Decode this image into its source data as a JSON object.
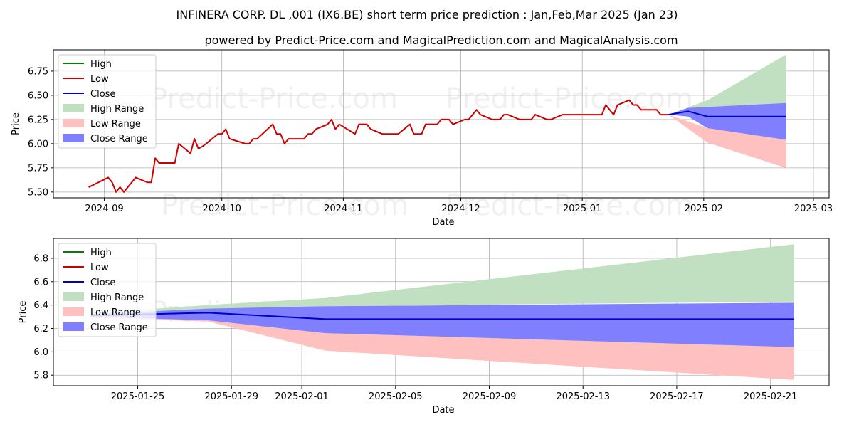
{
  "title": "INFINERA CORP. DL ,001 (IX6.BE) short term price prediction : Jan,Feb,Mar 2025 (Jan 23)",
  "subtitle": "powered by Predict-Price.com and MagicalPrediction.com and MagicalAnalysis.com",
  "watermark": "Predict-Price.com",
  "colors": {
    "high": "#008000",
    "low": "#cc0000",
    "close": "#0000cc",
    "high_range": "#c1e0c1",
    "low_range": "#ffc0c0",
    "close_range": "#8080ff"
  },
  "chart_data": [
    {
      "type": "line",
      "xlabel": "Date",
      "ylabel": "Price",
      "xlim": [
        "2024-08-19",
        "2025-03-05"
      ],
      "ylim": [
        5.44,
        6.97
      ],
      "x_ticks": [
        {
          "date": "2024-09-01",
          "label": "2024-09"
        },
        {
          "date": "2024-10-01",
          "label": "2024-10"
        },
        {
          "date": "2024-11-01",
          "label": "2024-11"
        },
        {
          "date": "2024-12-01",
          "label": "2024-12"
        },
        {
          "date": "2025-01-01",
          "label": "2025-01"
        },
        {
          "date": "2025-02-01",
          "label": "2025-02"
        },
        {
          "date": "2025-03-01",
          "label": "2025-03"
        }
      ],
      "y_ticks": [
        {
          "value": 5.5,
          "label": "5.50"
        },
        {
          "value": 5.75,
          "label": "5.75"
        },
        {
          "value": 6.0,
          "label": "6.00"
        },
        {
          "value": 6.25,
          "label": "6.25"
        },
        {
          "value": 6.5,
          "label": "6.50"
        },
        {
          "value": 6.75,
          "label": "6.75"
        }
      ],
      "legend_position": "upper-left",
      "legend": [
        "High",
        "Low",
        "Close",
        "High Range",
        "Low Range",
        "Close Range"
      ],
      "grid": true,
      "series": [
        {
          "name": "Low",
          "x": [
            "2024-08-28",
            "2024-09-02",
            "2024-09-03",
            "2024-09-04",
            "2024-09-05",
            "2024-09-06",
            "2024-09-07",
            "2024-09-08",
            "2024-09-09",
            "2024-09-12",
            "2024-09-13",
            "2024-09-14",
            "2024-09-15",
            "2024-09-16",
            "2024-09-17",
            "2024-09-18",
            "2024-09-19",
            "2024-09-20",
            "2024-09-23",
            "2024-09-24",
            "2024-09-25",
            "2024-09-26",
            "2024-09-27",
            "2024-09-30",
            "2024-10-01",
            "2024-10-02",
            "2024-10-03",
            "2024-10-07",
            "2024-10-08",
            "2024-10-09",
            "2024-10-10",
            "2024-10-14",
            "2024-10-15",
            "2024-10-16",
            "2024-10-17",
            "2024-10-18",
            "2024-10-21",
            "2024-10-22",
            "2024-10-23",
            "2024-10-24",
            "2024-10-25",
            "2024-10-28",
            "2024-10-29",
            "2024-10-30",
            "2024-10-31",
            "2024-11-04",
            "2024-11-05",
            "2024-11-06",
            "2024-11-07",
            "2024-11-08",
            "2024-11-11",
            "2024-11-12",
            "2024-11-13",
            "2024-11-14",
            "2024-11-15",
            "2024-11-18",
            "2024-11-19",
            "2024-11-20",
            "2024-11-21",
            "2024-11-22",
            "2024-11-25",
            "2024-11-26",
            "2024-11-27",
            "2024-11-28",
            "2024-11-29",
            "2024-12-02",
            "2024-12-03",
            "2024-12-04",
            "2024-12-05",
            "2024-12-06",
            "2024-12-09",
            "2024-12-10",
            "2024-12-11",
            "2024-12-12",
            "2024-12-13",
            "2024-12-16",
            "2024-12-17",
            "2024-12-18",
            "2024-12-19",
            "2024-12-20",
            "2024-12-23",
            "2024-12-24",
            "2024-12-27",
            "2024-12-30",
            "2025-01-02",
            "2025-01-03",
            "2025-01-06",
            "2025-01-07",
            "2025-01-08",
            "2025-01-09",
            "2025-01-10",
            "2025-01-13",
            "2025-01-14",
            "2025-01-15",
            "2025-01-16",
            "2025-01-17",
            "2025-01-20",
            "2025-01-21",
            "2025-01-22",
            "2025-01-23"
          ],
          "y": [
            5.55,
            5.65,
            5.6,
            5.5,
            5.55,
            5.5,
            5.55,
            5.6,
            5.65,
            5.6,
            5.6,
            5.85,
            5.8,
            5.8,
            5.8,
            5.8,
            5.8,
            6.0,
            5.9,
            6.05,
            5.95,
            5.97,
            6.0,
            6.1,
            6.1,
            6.15,
            6.05,
            6.0,
            6.0,
            6.05,
            6.05,
            6.2,
            6.1,
            6.1,
            6.0,
            6.05,
            6.05,
            6.05,
            6.1,
            6.1,
            6.15,
            6.2,
            6.25,
            6.15,
            6.2,
            6.1,
            6.2,
            6.2,
            6.2,
            6.15,
            6.1,
            6.1,
            6.1,
            6.1,
            6.1,
            6.2,
            6.1,
            6.1,
            6.1,
            6.2,
            6.2,
            6.25,
            6.25,
            6.25,
            6.2,
            6.25,
            6.25,
            6.3,
            6.35,
            6.3,
            6.25,
            6.25,
            6.25,
            6.3,
            6.3,
            6.25,
            6.25,
            6.25,
            6.25,
            6.3,
            6.25,
            6.25,
            6.3,
            6.3,
            6.3,
            6.3,
            6.3,
            6.4,
            6.35,
            6.3,
            6.4,
            6.45,
            6.4,
            6.4,
            6.35,
            6.35,
            6.35,
            6.3,
            6.3,
            6.3
          ]
        },
        {
          "name": "Close",
          "x": [
            "2025-01-23",
            "2025-01-28",
            "2025-02-02",
            "2025-02-22"
          ],
          "y": [
            6.3,
            6.335,
            6.28,
            6.28
          ]
        }
      ],
      "bands": [
        {
          "name": "High Range",
          "x": [
            "2025-01-23",
            "2025-02-02",
            "2025-02-22"
          ],
          "lower": [
            6.3,
            6.38,
            6.42
          ],
          "upper": [
            6.3,
            6.45,
            6.92
          ]
        },
        {
          "name": "Low Range",
          "x": [
            "2025-01-23",
            "2025-02-02",
            "2025-02-22"
          ],
          "lower": [
            6.3,
            6.01,
            5.75
          ],
          "upper": [
            6.3,
            6.16,
            6.04
          ]
        },
        {
          "name": "Close Range",
          "x": [
            "2025-01-23",
            "2025-01-28",
            "2025-02-02",
            "2025-02-22"
          ],
          "lower": [
            6.3,
            6.28,
            6.16,
            6.04
          ],
          "upper": [
            6.3,
            6.37,
            6.38,
            6.42
          ]
        }
      ]
    },
    {
      "type": "line",
      "xlabel": "Date",
      "ylabel": "Price",
      "xlim": [
        "2025-01-21.4",
        "2025-02-23.5"
      ],
      "ylim": [
        5.71,
        6.97
      ],
      "x_ticks": [
        {
          "date": "2025-01-25",
          "label": "2025-01-25"
        },
        {
          "date": "2025-01-29",
          "label": "2025-01-29"
        },
        {
          "date": "2025-02-01",
          "label": "2025-02-01"
        },
        {
          "date": "2025-02-05",
          "label": "2025-02-05"
        },
        {
          "date": "2025-02-09",
          "label": "2025-02-09"
        },
        {
          "date": "2025-02-13",
          "label": "2025-02-13"
        },
        {
          "date": "2025-02-17",
          "label": "2025-02-17"
        },
        {
          "date": "2025-02-21",
          "label": "2025-02-21"
        }
      ],
      "y_ticks": [
        {
          "value": 5.8,
          "label": "5.8"
        },
        {
          "value": 6.0,
          "label": "6.0"
        },
        {
          "value": 6.2,
          "label": "6.2"
        },
        {
          "value": 6.4,
          "label": "6.4"
        },
        {
          "value": 6.6,
          "label": "6.6"
        },
        {
          "value": 6.8,
          "label": "6.8"
        }
      ],
      "legend_position": "upper-left",
      "legend": [
        "High",
        "Low",
        "Close",
        "High Range",
        "Low Range",
        "Close Range"
      ],
      "grid": true,
      "series": [
        {
          "name": "Close",
          "x": [
            "2025-01-23",
            "2025-01-28",
            "2025-02-02",
            "2025-02-22"
          ],
          "y": [
            6.31,
            6.335,
            6.28,
            6.28
          ]
        }
      ],
      "bands": [
        {
          "name": "High Range",
          "x": [
            "2025-01-23",
            "2025-01-28",
            "2025-02-02",
            "2025-02-22"
          ],
          "lower": [
            6.31,
            6.36,
            6.39,
            6.43
          ],
          "upper": [
            6.33,
            6.4,
            6.46,
            6.92
          ]
        },
        {
          "name": "Low Range",
          "x": [
            "2025-01-23",
            "2025-01-28",
            "2025-02-02",
            "2025-02-22"
          ],
          "lower": [
            6.29,
            6.26,
            6.01,
            5.76
          ],
          "upper": [
            6.31,
            6.3,
            6.16,
            6.04
          ]
        },
        {
          "name": "Close Range",
          "x": [
            "2025-01-23",
            "2025-01-28",
            "2025-02-02",
            "2025-02-22"
          ],
          "lower": [
            6.3,
            6.27,
            6.16,
            6.04
          ],
          "upper": [
            6.32,
            6.37,
            6.39,
            6.42
          ]
        }
      ]
    }
  ]
}
